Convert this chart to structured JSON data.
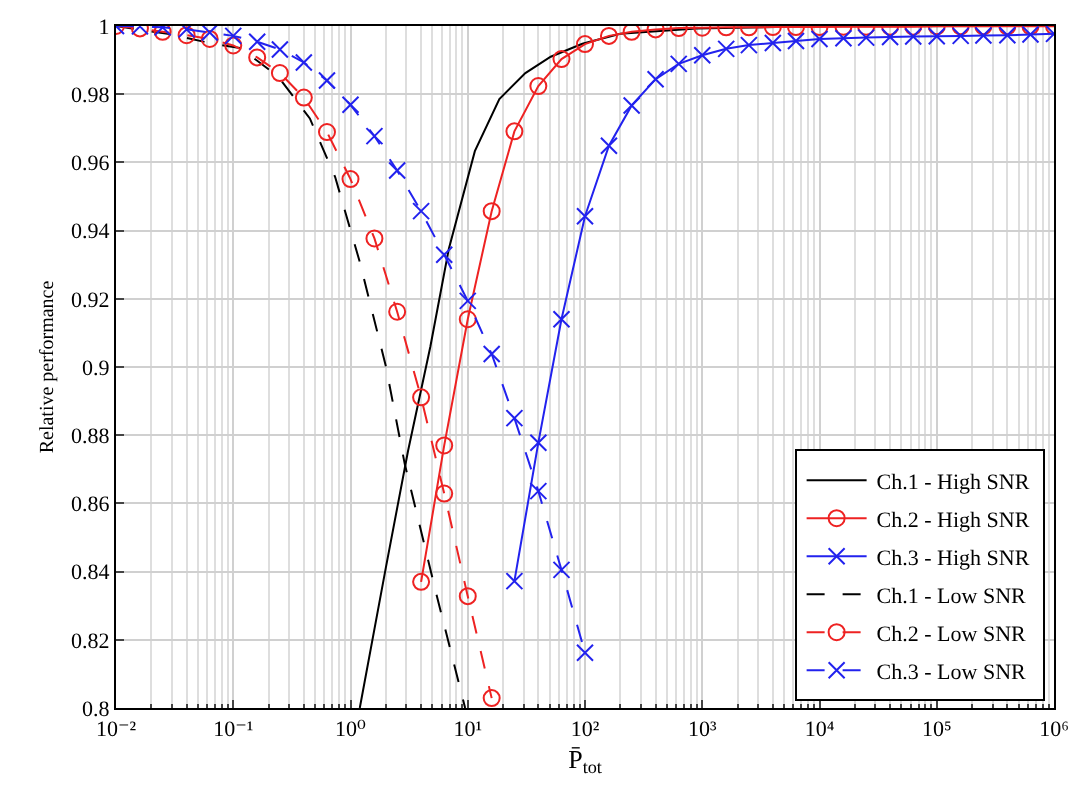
{
  "chart_data": {
    "type": "line",
    "xlabel": "P̄$_{tot}$",
    "ylabel": "Relative performance",
    "log": "x",
    "grid": true,
    "legend": "bottom right",
    "xlim": [
      0.01,
      1000000
    ],
    "xticks": [
      {
        "value": 0.01,
        "label": "10⁻²"
      },
      {
        "value": 0.1,
        "label": "10⁻¹"
      },
      {
        "value": 1,
        "label": "10⁰"
      },
      {
        "value": 10,
        "label": "10¹"
      },
      {
        "value": 100,
        "label": "10²"
      },
      {
        "value": 1000,
        "label": "10³"
      },
      {
        "value": 10000,
        "label": "10⁴"
      },
      {
        "value": 100000,
        "label": "10⁵"
      },
      {
        "value": 1000000,
        "label": "10⁶"
      }
    ],
    "ylim": [
      0.8,
      1
    ],
    "yticks": [
      0.8,
      0.82,
      0.84,
      0.86,
      0.88,
      0.9,
      0.92,
      0.94,
      0.96,
      0.98,
      1
    ],
    "x": [
      0.01,
      0.016,
      0.025,
      0.04,
      0.063,
      0.1,
      0.16,
      0.25,
      0.4,
      0.63,
      1,
      1.6,
      2.5,
      4,
      6.3,
      10,
      16,
      25,
      40,
      63,
      100,
      160,
      250,
      400,
      630,
      1000,
      1600,
      2500,
      4000,
      6300,
      10000,
      16000,
      25000,
      40000,
      63000,
      100000,
      160000,
      250000,
      400000,
      630000,
      1000000
    ],
    "series": [
      {
        "name": "Ch.1 - High SNR",
        "color": "#000000",
        "marker": "none",
        "line_style": "solid",
        "x": [
          1.2,
          2,
          3.1,
          4.8,
          6.9,
          11.5,
          18.6,
          31,
          51,
          95,
          200,
          890,
          10000,
          1000000
        ],
        "values": [
          0.8,
          0.8411,
          0.8755,
          0.906,
          0.9347,
          0.9633,
          0.9786,
          0.9862,
          0.991,
          0.9948,
          0.9977,
          0.9993,
          0.9999,
          1.0
        ]
      },
      {
        "name": "Ch.2 - High SNR",
        "color": "#ee2222",
        "marker": "circle",
        "line_style": "solid",
        "values": [
          null,
          null,
          null,
          null,
          null,
          null,
          null,
          null,
          null,
          null,
          null,
          null,
          null,
          0.837,
          0.877,
          0.914,
          0.9457,
          0.9691,
          0.9824,
          0.9903,
          0.9947,
          0.9971,
          0.9983,
          0.999,
          0.9994,
          0.9995,
          0.9996,
          0.9996,
          0.9997,
          0.9997,
          0.9997,
          0.9998,
          0.9998,
          0.9998,
          0.9998,
          0.9999,
          0.9999,
          0.9999,
          0.9999,
          0.9999,
          0.9999
        ]
      },
      {
        "name": "Ch.3 - High SNR",
        "color": "#2222ee",
        "marker": "cross",
        "line_style": "solid",
        "values": [
          null,
          null,
          null,
          null,
          null,
          null,
          null,
          null,
          null,
          null,
          null,
          null,
          null,
          null,
          null,
          null,
          null,
          0.8372,
          0.8778,
          0.914,
          0.9442,
          0.9649,
          0.9767,
          0.9844,
          0.9889,
          0.9914,
          0.9933,
          0.9944,
          0.995,
          0.9956,
          0.9962,
          0.9964,
          0.9966,
          0.9968,
          0.9969,
          0.997,
          0.9971,
          0.9972,
          0.9973,
          0.9975,
          0.9977
        ]
      },
      {
        "name": "Ch.1 - Low SNR",
        "color": "#000000",
        "marker": "none",
        "line_style": "dashed",
        "x": [
          0.01,
          0.03,
          0.063,
          0.115,
          0.24,
          0.45,
          0.74,
          1.2,
          2,
          2.9,
          5.4,
          9.5
        ],
        "values": [
          1.0,
          0.9975,
          0.995,
          0.9935,
          0.9853,
          0.9729,
          0.9557,
          0.9308,
          0.9003,
          0.8716,
          0.8334,
          0.8
        ]
      },
      {
        "name": "Ch.2 - Low SNR",
        "color": "#ee2222",
        "marker": "circle",
        "line_style": "dashed",
        "values": [
          1.0,
          0.9993,
          0.9983,
          0.9973,
          0.9962,
          0.9943,
          0.9908,
          0.9862,
          0.979,
          0.9689,
          0.9551,
          0.9377,
          0.9162,
          0.8911,
          0.8629,
          0.8328,
          0.8029,
          null,
          null,
          null,
          null,
          null,
          null,
          null,
          null,
          null,
          null,
          null,
          null,
          null,
          null,
          null,
          null,
          null,
          null,
          null,
          null,
          null,
          null,
          null,
          null
        ]
      },
      {
        "name": "Ch.3 - Low SNR",
        "color": "#2222ee",
        "marker": "cross",
        "line_style": "dashed",
        "values": [
          1.0,
          0.9999,
          0.9996,
          0.999,
          0.9981,
          0.9971,
          0.9954,
          0.9931,
          0.9893,
          0.984,
          0.9769,
          0.9677,
          0.9576,
          0.9457,
          0.9329,
          0.9194,
          0.9038,
          0.885,
          0.8636,
          0.8405,
          0.8162,
          null,
          null,
          null,
          null,
          null,
          null,
          null,
          null,
          null,
          null,
          null,
          null,
          null,
          null,
          null,
          null,
          null,
          null,
          null,
          null
        ]
      }
    ]
  }
}
